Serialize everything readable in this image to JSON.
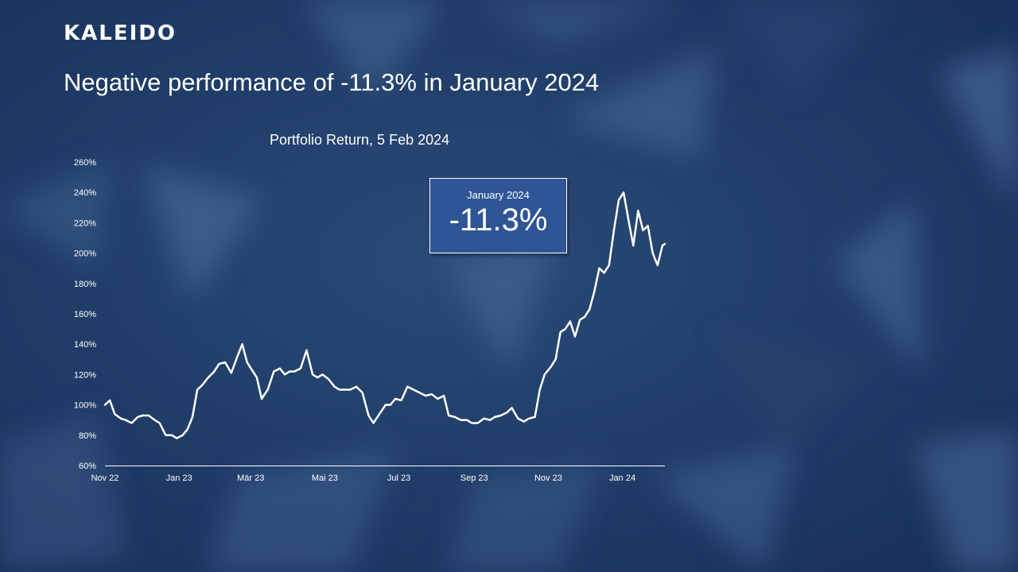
{
  "brand": {
    "logo_text": "KALEIDO"
  },
  "headline": "Negative performance of -11.3% in January 2024",
  "callout": {
    "label": "January 2024",
    "value": "-11.3%"
  },
  "colors": {
    "background": "#1f3a63",
    "line": "#ffffff",
    "callout_bg": "#2f5597"
  },
  "chart_data": {
    "type": "line",
    "title": "Portfolio Return, 5 Feb 2024",
    "xlabel": "",
    "ylabel": "",
    "ylim": [
      60,
      260
    ],
    "y_ticks": [
      60,
      80,
      100,
      120,
      140,
      160,
      180,
      200,
      220,
      240,
      260
    ],
    "y_tick_labels": [
      "60%",
      "80%",
      "100%",
      "120%",
      "140%",
      "160%",
      "180%",
      "200%",
      "220%",
      "240%",
      "260%"
    ],
    "x_ticks": [
      "2022-11-01",
      "2023-01-01",
      "2023-03-01",
      "2023-05-01",
      "2023-07-01",
      "2023-09-01",
      "2023-11-01",
      "2024-01-01"
    ],
    "x_tick_labels": [
      "Nov 22",
      "Jan 23",
      "Mär 23",
      "Mai 23",
      "Jul 23",
      "Sep 23",
      "Nov 23",
      "Jan 24"
    ],
    "xlim": [
      "2022-11-01",
      "2024-02-05"
    ],
    "grid": false,
    "legend": "none",
    "series": [
      {
        "x": [
          "2022-11-01",
          "2022-11-05",
          "2022-11-09",
          "2022-11-14",
          "2022-11-18",
          "2022-11-23",
          "2022-11-28",
          "2022-12-02",
          "2022-12-07",
          "2022-12-12",
          "2022-12-16",
          "2022-12-21",
          "2022-12-26",
          "2022-12-30",
          "2023-01-04",
          "2023-01-08",
          "2023-01-12",
          "2023-01-16",
          "2023-01-20",
          "2023-01-25",
          "2023-01-30",
          "2023-02-03",
          "2023-02-08",
          "2023-02-13",
          "2023-02-18",
          "2023-02-22",
          "2023-02-26",
          "2023-03-02",
          "2023-03-06",
          "2023-03-10",
          "2023-03-15",
          "2023-03-20",
          "2023-03-25",
          "2023-03-29",
          "2023-04-02",
          "2023-04-06",
          "2023-04-11",
          "2023-04-16",
          "2023-04-21",
          "2023-04-25",
          "2023-04-29",
          "2023-05-04",
          "2023-05-09",
          "2023-05-13",
          "2023-05-18",
          "2023-05-22",
          "2023-05-27",
          "2023-06-01",
          "2023-06-06",
          "2023-06-10",
          "2023-06-15",
          "2023-06-20",
          "2023-06-24",
          "2023-06-28",
          "2023-07-03",
          "2023-07-08",
          "2023-07-13",
          "2023-07-18",
          "2023-07-23",
          "2023-07-28",
          "2023-08-02",
          "2023-08-07",
          "2023-08-11",
          "2023-08-16",
          "2023-08-21",
          "2023-08-26",
          "2023-08-30",
          "2023-09-04",
          "2023-09-09",
          "2023-09-14",
          "2023-09-18",
          "2023-09-23",
          "2023-09-28",
          "2023-10-02",
          "2023-10-07",
          "2023-10-12",
          "2023-10-16",
          "2023-10-21",
          "2023-10-25",
          "2023-10-29",
          "2023-11-03",
          "2023-11-07",
          "2023-11-11",
          "2023-11-15",
          "2023-11-19",
          "2023-11-23",
          "2023-11-27",
          "2023-12-01",
          "2023-12-05",
          "2023-12-09",
          "2023-12-13",
          "2023-12-17",
          "2023-12-21",
          "2023-12-25",
          "2023-12-29",
          "2024-01-02",
          "2024-01-06",
          "2024-01-10",
          "2024-01-14",
          "2024-01-18",
          "2024-01-22",
          "2024-01-26",
          "2024-01-30",
          "2024-02-03",
          "2024-02-05"
        ],
        "y": [
          100,
          103,
          94,
          91,
          90,
          88,
          92,
          93,
          93,
          90,
          88,
          80,
          80,
          78,
          80,
          84,
          92,
          110,
          113,
          118,
          122,
          127,
          128,
          121,
          132,
          140,
          128,
          123,
          118,
          104,
          110,
          122,
          124,
          120,
          122,
          122,
          124,
          136,
          120,
          118,
          120,
          117,
          112,
          110,
          110,
          110,
          112,
          108,
          93,
          88,
          94,
          100,
          100,
          104,
          103,
          112,
          110,
          108,
          106,
          107,
          104,
          106,
          93,
          92,
          90,
          90,
          88,
          88,
          91,
          90,
          92,
          93,
          95,
          98,
          91,
          89,
          91,
          92,
          110,
          120,
          125,
          130,
          148,
          150,
          155,
          145,
          156,
          158,
          163,
          175,
          190,
          187,
          192,
          215,
          235,
          240,
          222,
          205,
          228,
          215,
          218,
          200,
          192,
          205,
          206
        ]
      }
    ]
  }
}
